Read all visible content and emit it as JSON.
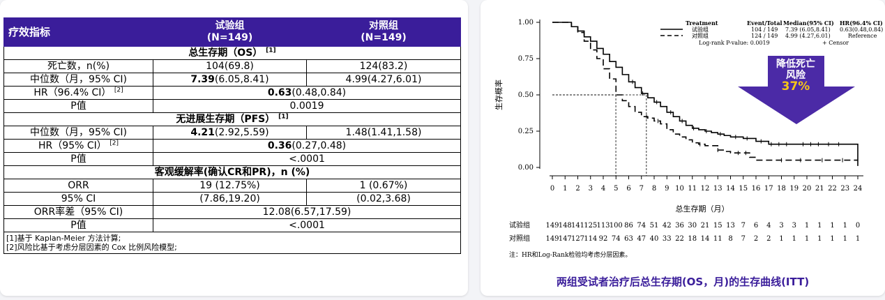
{
  "table": {
    "header": {
      "metric": "疗效指标",
      "trial": "试验组\n(N=149)",
      "control": "对照组\n(N=149)"
    },
    "os": {
      "title": "总生存期（OS）",
      "title_sup": "[1]",
      "deaths_label": "死亡数，n(%)",
      "deaths_trial": "104(69.8)",
      "deaths_control": "124(83.2)",
      "median_label": "中位数（月，95% CI)",
      "median_trial_bold": "7.39",
      "median_trial_rest": "(6.05,8.41)",
      "median_control": "4.99(4.27,6.01)",
      "hr_label": "HR（96.4% CI）",
      "hr_label_sup": "[2]",
      "hr_bold": "0.63",
      "hr_rest": "(0.48,0.84)",
      "p_label": "P值",
      "p_value": "0.0019"
    },
    "pfs": {
      "title": "无进展生存期（PFS）",
      "title_sup": "[1]",
      "median_label": "中位数（月，95% CI)",
      "median_trial_bold": "4.21",
      "median_trial_rest": "(2.92,5.59)",
      "median_control": "1.48(1.41,1.58)",
      "hr_label": "HR（95% CI）",
      "hr_label_sup": "[2]",
      "hr_bold": "0.36",
      "hr_rest": "(0.27,0.48)",
      "p_label": "P值",
      "p_value": "<.0001"
    },
    "orr": {
      "title": "客观缓解率(确认CR和PR)，n (%)",
      "orr_label": "ORR",
      "orr_trial": "19 (12.75%)",
      "orr_control": "1 (0.67%)",
      "ci_label": "95% CI",
      "ci_trial": "(7.86,19.20)",
      "ci_control": "(0.02,3.68)",
      "diff_label": "ORR率差（95% CI)",
      "diff_value": "12.08(6.57,17.59)",
      "p_label": "P值",
      "p_value": "<.0001"
    },
    "footnotes": [
      "[1]基于 Kaplan-Meier 方法计算;",
      "[2]风险比基于考虑分层因素的 Cox 比例风险模型;"
    ]
  },
  "chart_data": {
    "type": "line",
    "title": "两组受试者治疗后总生存期(OS，月)的生存曲线(ITT)",
    "xlabel": "总生存期（月）",
    "ylabel": "生存概率",
    "xlim": [
      0,
      24
    ],
    "ylim": [
      0,
      1
    ],
    "x_ticks": [
      0,
      1,
      2,
      3,
      4,
      5,
      6,
      7,
      8,
      9,
      10,
      11,
      12,
      13,
      14,
      15,
      16,
      17,
      18,
      19,
      20,
      21,
      22,
      23,
      24
    ],
    "y_ticks": [
      "0.00",
      "0.25",
      "0.50",
      "0.75",
      "1.00"
    ],
    "legend": {
      "placement": "top-right",
      "headers": [
        "Treatment",
        "Event/Total",
        "Median(95% CI)",
        "HR(96.4% CI)"
      ],
      "rows": [
        [
          "试验组",
          "104 / 149",
          "7.39 (6.05,8.41)",
          "0.63(0.48,0.84)"
        ],
        [
          "对照组",
          "124 / 149",
          "4.99 (4.27,6.01)",
          "Reference"
        ]
      ],
      "pvalue": "Log-rank P-value: 0.0019",
      "censor": "+ Censor"
    },
    "series": [
      {
        "name": "试验组",
        "style": "solid",
        "points": [
          [
            0,
            1.0
          ],
          [
            1.0,
            1.0
          ],
          [
            1.5,
            0.97
          ],
          [
            2.0,
            0.94
          ],
          [
            2.5,
            0.9
          ],
          [
            3.0,
            0.87
          ],
          [
            3.5,
            0.82
          ],
          [
            4.0,
            0.78
          ],
          [
            4.5,
            0.73
          ],
          [
            5.0,
            0.69
          ],
          [
            5.5,
            0.64
          ],
          [
            6.0,
            0.59
          ],
          [
            6.5,
            0.55
          ],
          [
            7.0,
            0.51
          ],
          [
            7.5,
            0.48
          ],
          [
            8.0,
            0.45
          ],
          [
            8.5,
            0.42
          ],
          [
            9.0,
            0.38
          ],
          [
            9.5,
            0.35
          ],
          [
            10.0,
            0.32
          ],
          [
            10.5,
            0.29
          ],
          [
            11.0,
            0.27
          ],
          [
            11.5,
            0.26
          ],
          [
            12.0,
            0.25
          ],
          [
            12.5,
            0.24
          ],
          [
            13.0,
            0.23
          ],
          [
            13.5,
            0.22
          ],
          [
            14.0,
            0.21
          ],
          [
            15.0,
            0.2
          ],
          [
            16.0,
            0.18
          ],
          [
            17.0,
            0.16
          ],
          [
            24.0,
            0.16
          ],
          [
            24.0,
            0.01
          ]
        ],
        "censor_x": [
          6.3,
          7.1,
          8.2,
          9.3,
          10.2,
          11.1,
          12.1,
          13.2,
          14.4,
          15.3,
          16.4,
          17.2,
          17.8,
          18.4,
          19.7,
          20.3,
          20.9,
          21.7,
          22.5
        ]
      },
      {
        "name": "对照组",
        "style": "dashed",
        "points": [
          [
            0,
            1.0
          ],
          [
            1.3,
            1.0
          ],
          [
            1.5,
            0.97
          ],
          [
            2.0,
            0.93
          ],
          [
            2.5,
            0.87
          ],
          [
            3.0,
            0.81
          ],
          [
            3.5,
            0.75
          ],
          [
            4.0,
            0.68
          ],
          [
            4.5,
            0.61
          ],
          [
            5.0,
            0.5
          ],
          [
            5.5,
            0.46
          ],
          [
            6.0,
            0.42
          ],
          [
            6.5,
            0.38
          ],
          [
            7.0,
            0.35
          ],
          [
            7.5,
            0.34
          ],
          [
            8.0,
            0.32
          ],
          [
            8.5,
            0.3
          ],
          [
            9.0,
            0.26
          ],
          [
            9.5,
            0.23
          ],
          [
            10.0,
            0.21
          ],
          [
            10.5,
            0.19
          ],
          [
            11.0,
            0.17
          ],
          [
            11.5,
            0.16
          ],
          [
            12.0,
            0.15
          ],
          [
            13.0,
            0.12
          ],
          [
            13.5,
            0.11
          ],
          [
            14.0,
            0.1
          ],
          [
            15.0,
            0.1
          ],
          [
            15.5,
            0.07
          ],
          [
            16.0,
            0.05
          ],
          [
            24.0,
            0.05
          ]
        ],
        "censor_x": [
          7.4,
          8.3,
          11.6,
          13.0,
          14.6,
          15.2,
          18.0,
          19.5,
          21.2,
          22.8
        ]
      }
    ],
    "median_refs": [
      {
        "x": 4.99,
        "y": 0.5
      },
      {
        "x": 7.39,
        "y": 0.5
      }
    ],
    "risk_table": {
      "rows": [
        {
          "label": "试验组",
          "values": [
            149,
            148,
            141,
            125,
            113,
            100,
            86,
            74,
            51,
            42,
            36,
            30,
            21,
            15,
            13,
            7,
            6,
            4,
            3,
            3,
            1,
            1,
            1,
            1,
            0
          ]
        },
        {
          "label": "对照组",
          "values": [
            149,
            147,
            127,
            114,
            92,
            74,
            63,
            47,
            40,
            33,
            22,
            18,
            14,
            11,
            8,
            7,
            2,
            2,
            1,
            1,
            1,
            1,
            1,
            1,
            1
          ]
        }
      ]
    },
    "note": "注：HR和Log-Rank检验均考虑分层因素。",
    "annotation": {
      "text": "降低死亡\n风险",
      "percent": "37%",
      "arrow_color": "#4b2aa6",
      "percent_color": "#f5c518"
    },
    "colors": {
      "brand": "#3a1d9a"
    }
  }
}
